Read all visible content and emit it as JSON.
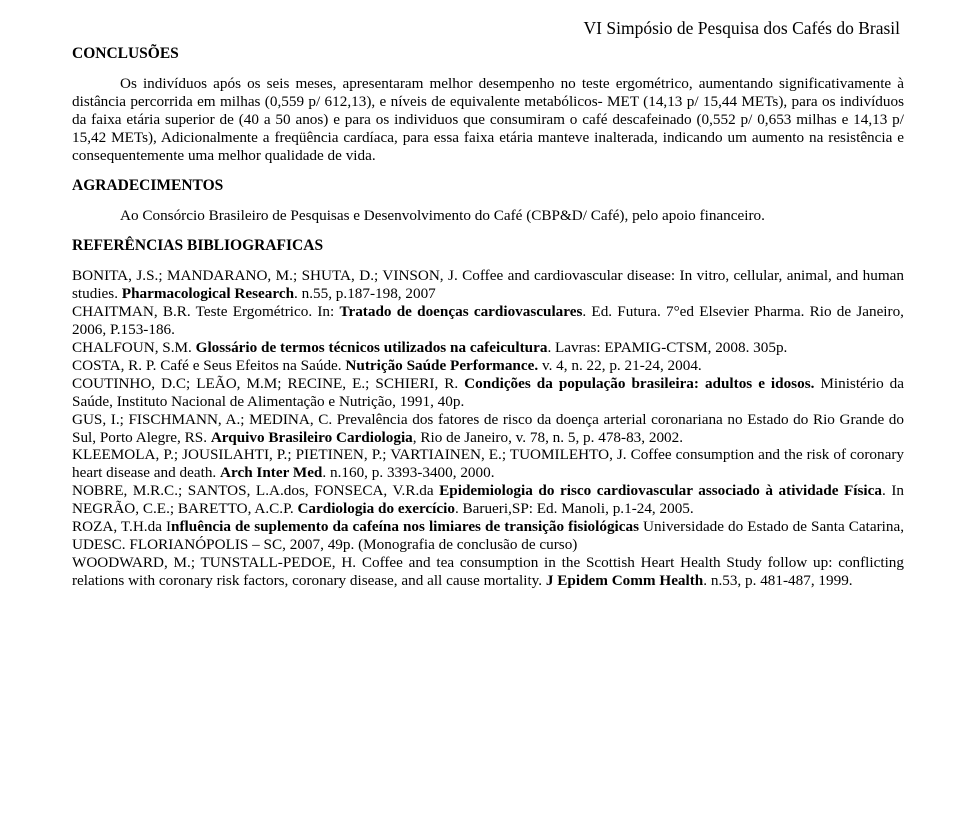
{
  "header": {
    "event_title": "VI Simpósio de Pesquisa dos Cafés do Brasil"
  },
  "sections": {
    "conclusoes_heading": "CONCLUSÕES",
    "conclusoes_body": "Os indivíduos após os seis meses, apresentaram melhor desempenho no teste ergométrico, aumentando significativamente à distância percorrida em milhas (0,559 p/ 612,13), e níveis de equivalente metabólicos- MET (14,13 p/ 15,44 METs), para os indivíduos da faixa etária superior de (40 a 50 anos) e para os individuos que consumiram o café descafeinado (0,552 p/ 0,653 milhas e 14,13 p/ 15,42 METs), Adicionalmente a freqüência cardíaca, para essa faixa etária manteve inalterada, indicando um aumento na resistência e consequentemente uma melhor qualidade de vida.",
    "agradecimentos_heading": "AGRADECIMENTOS",
    "agradecimentos_body": "Ao Consórcio Brasileiro de Pesquisas e Desenvolvimento do Café (CBP&D/ Café), pelo apoio financeiro.",
    "referencias_heading": "REFERÊNCIAS BIBLIOGRAFICAS"
  },
  "references": [
    {
      "pre": "BONITA, J.S.; MANDARANO, M.; SHUTA, D.; VINSON, J. Coffee and cardiovascular disease: In vitro, cellular, animal, and human studies. ",
      "bold": "Pharmacological Research",
      "post": ". n.55, p.187-198, 2007"
    },
    {
      "pre": "CHAITMAN, B.R. Teste Ergométrico. In: ",
      "bold": "Tratado de doenças cardiovasculares",
      "post": ". Ed. Futura. 7°ed Elsevier Pharma. Rio de Janeiro, 2006, P.153-186."
    },
    {
      "pre": "CHALFOUN, S.M. ",
      "bold": "Glossário de termos técnicos utilizados na cafeicultura",
      "post": ". Lavras: EPAMIG-CTSM, 2008. 305p."
    },
    {
      "pre": "COSTA, R. P. Café e Seus Efeitos na Saúde. ",
      "bold": "Nutrição Saúde Performance.",
      "post": " v. 4, n. 22, p. 21-24, 2004."
    },
    {
      "pre": "COUTINHO, D.C; LEÃO, M.M; RECINE, E.; SCHIERI, R. ",
      "bold": "Condições da população brasileira: adultos e idosos.",
      "post": " Ministério da Saúde, Instituto Nacional de Alimentação e Nutrição, 1991, 40p."
    },
    {
      "pre": "GUS, I.; FISCHMANN, A.; MEDINA, C. Prevalência dos fatores de risco da doença arterial coronariana no Estado do Rio Grande do Sul, Porto Alegre, RS. ",
      "bold": "Arquivo Brasileiro Cardiologia",
      "post": ", Rio de Janeiro, v. 78, n. 5, p. 478-83, 2002."
    },
    {
      "pre": "KLEEMOLA, P.; JOUSILAHTI, P.; PIETINEN, P.; VARTIAINEN, E.; TUOMILEHTO, J. Coffee consumption and the risk of coronary heart disease and death. ",
      "bold": "Arch Inter Med",
      "post": ". n.160, p. 3393-3400, 2000."
    },
    {
      "pre": "NOBRE, M.R.C.; SANTOS, L.A.dos, FONSECA, V.R.da ",
      "bold": "Epidemiologia do risco cardiovascular associado à atividade Física",
      "post": ". In NEGRÃO, C.E.; BARETTO, A.C.P. ",
      "bold2": "Cardiologia do exercício",
      "post2": ". Barueri,SP: Ed. Manoli, p.1-24, 2005."
    },
    {
      "pre": "ROZA, T.H.da I",
      "bold": "nfluência de suplemento da cafeína nos limiares de transição fisiológicas",
      "post": " Universidade do Estado de Santa Catarina, UDESC. FLORIANÓPOLIS – SC, 2007, 49p. (Monografia de conclusão de curso)"
    },
    {
      "pre": "WOODWARD, M.; TUNSTALL-PEDOE, H. Coffee and tea consumption in the Scottish Heart Health Study follow up: conflicting relations with coronary risk factors, coronary disease, and all cause mortality. ",
      "bold": "J Epidem Comm Health",
      "post": ". n.53, p. 481-487, 1999."
    }
  ]
}
